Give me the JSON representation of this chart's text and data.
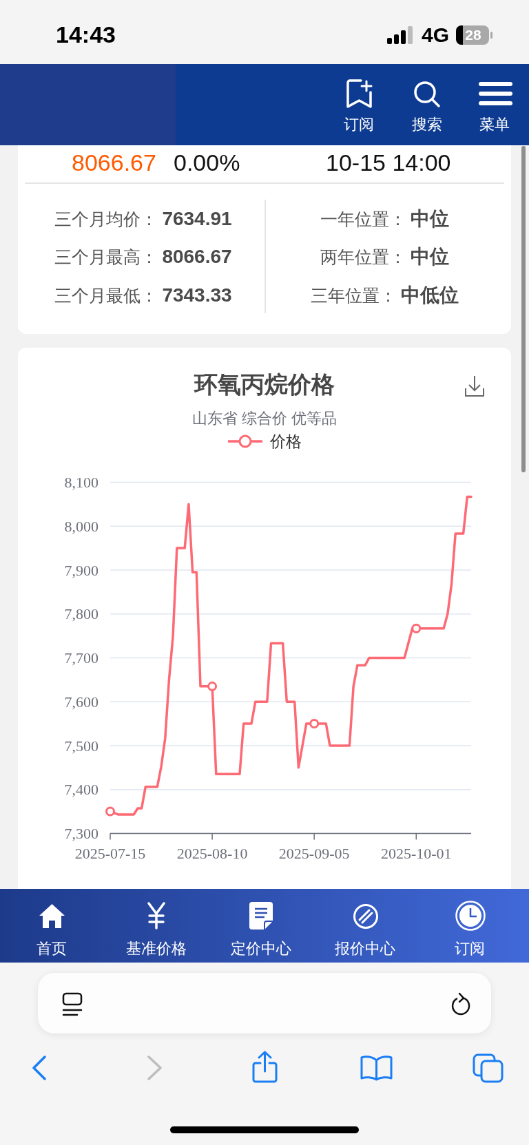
{
  "chart_data": {
    "type": "line",
    "title": "环氧丙烷价格",
    "subtitle": "山东省 综合价 优等品",
    "x": [
      "2025-07-15",
      "2025-07-17",
      "2025-07-21",
      "2025-07-22",
      "2025-07-23",
      "2025-07-24",
      "2025-07-27",
      "2025-07-28",
      "2025-07-29",
      "2025-07-30",
      "2025-07-31",
      "2025-08-01",
      "2025-08-03",
      "2025-08-04",
      "2025-08-05",
      "2025-08-06",
      "2025-08-07",
      "2025-08-10",
      "2025-08-11",
      "2025-08-17",
      "2025-08-18",
      "2025-08-20",
      "2025-08-21",
      "2025-08-24",
      "2025-08-25",
      "2025-08-28",
      "2025-08-29",
      "2025-08-31",
      "2025-09-01",
      "2025-09-03",
      "2025-09-05",
      "2025-09-08",
      "2025-09-09",
      "2025-09-14",
      "2025-09-15",
      "2025-09-16",
      "2025-09-18",
      "2025-09-19",
      "2025-09-28",
      "2025-09-30",
      "2025-10-01",
      "2025-10-08",
      "2025-10-09",
      "2025-10-10",
      "2025-10-11",
      "2025-10-13",
      "2025-10-14",
      "2025-10-15"
    ],
    "series": [
      {
        "name": "价格",
        "color": "#fd6a74",
        "marker": "none",
        "values": [
          7350,
          7343,
          7343,
          7357,
          7357,
          7406,
          7406,
          7452,
          7516,
          7650,
          7750,
          7950,
          7950,
          8050,
          7895,
          7895,
          7635,
          7635,
          7435,
          7435,
          7550,
          7550,
          7600,
          7600,
          7733,
          7733,
          7600,
          7600,
          7450,
          7550,
          7550,
          7550,
          7500,
          7500,
          7635,
          7683,
          7683,
          7700,
          7700,
          7767,
          7767,
          7767,
          7800,
          7868,
          7983,
          7983,
          8067,
          8067
        ]
      },
      {
        "type": "scatter",
        "color": "#fd6a74",
        "x": [
          "2025-07-15",
          "2025-08-10",
          "2025-09-05",
          "2025-10-01"
        ],
        "values": [
          7350,
          7635,
          7550,
          7767
        ]
      }
    ],
    "xlim": [
      "2025-07-15",
      "2025-10-15"
    ],
    "xticks": [
      "2025-07-15",
      "2025-08-10",
      "2025-09-05",
      "2025-10-01"
    ],
    "ylim": [
      7300,
      8100
    ],
    "yticks": [
      {
        "value": 7300,
        "label": "7,300"
      },
      {
        "value": 7400,
        "label": "7,400"
      },
      {
        "value": 7500,
        "label": "7,500"
      },
      {
        "value": 7600,
        "label": "7,600"
      },
      {
        "value": 7700,
        "label": "7,700"
      },
      {
        "value": 7800,
        "label": "7,800"
      },
      {
        "value": 7900,
        "label": "7,900"
      },
      {
        "value": 8000,
        "label": "8,000"
      },
      {
        "value": 8100,
        "label": "8,100"
      }
    ],
    "grid": "y",
    "legend": "top",
    "marker": "circle",
    "annotations": [
      "14:43",
      "4G",
      "28",
      "订阅",
      "搜索",
      "菜单",
      "8066.67",
      "0.00%",
      "10-15 14:00",
      "三个月均价：",
      "7634.91",
      "一年位置：",
      "中位",
      "三个月最高：",
      "8066.67",
      "两年位置：",
      "中位",
      "三个月最低：",
      "7343.33",
      "三年位置：",
      "中低位",
      "首页",
      "基准价格",
      "定价中心",
      "报价中心",
      "订阅"
    ]
  }
}
